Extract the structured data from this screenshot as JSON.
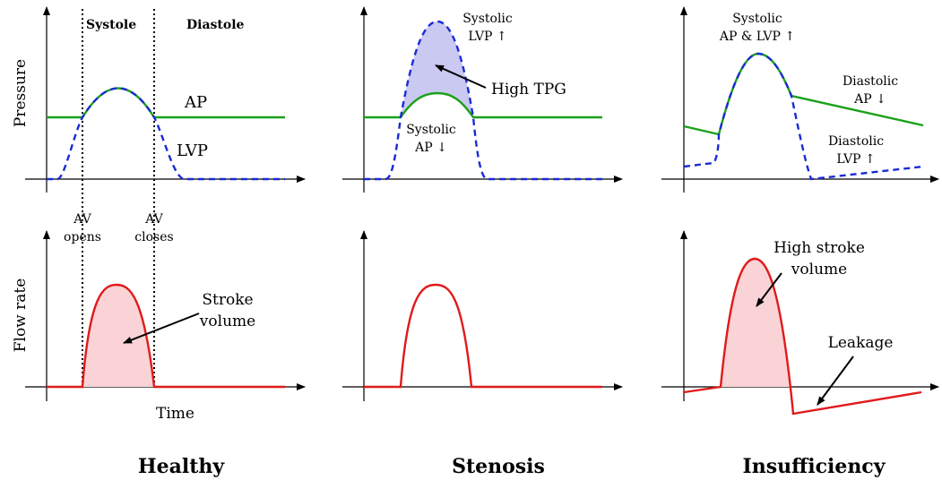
{
  "labels": {
    "pressure_axis": "Pressure",
    "flow_axis": "Flow rate",
    "time_axis": "Time",
    "systole": "Systole",
    "diastole": "Diastole",
    "av_opens_1": "AV",
    "av_opens_2": "opens",
    "av_closes_1": "AV",
    "av_closes_2": "closes",
    "ap": "AP",
    "lvp": "LVP",
    "stroke_volume_1": "Stroke",
    "stroke_volume_2": "volume",
    "systolic_lvp_1": "Systolic",
    "systolic_lvp_2": "LVP ↑",
    "high_tpg": "High TPG",
    "systolic_ap_1": "Systolic",
    "systolic_ap_2": "AP ↓",
    "systolic_ap_lvp_1": "Systolic",
    "systolic_ap_lvp_2": "AP & LVP ↑",
    "diastolic_ap_1": "Diastolic",
    "diastolic_ap_2": "AP ↓",
    "diastolic_lvp_1": "Diastolic",
    "diastolic_lvp_2": "LVP ↑",
    "high_sv_1": "High stroke",
    "high_sv_2": "volume",
    "leakage": "Leakage"
  },
  "titles": {
    "healthy": "Healthy",
    "stenosis": "Stenosis",
    "insufficiency": "Insufficiency"
  },
  "colors": {
    "ap": "#1aa01a",
    "lvp": "#1a2bd6",
    "flow": "#e01a1a",
    "flow_fill": "#f9d3d6",
    "tpg_fill": "#c9c9f1"
  }
}
